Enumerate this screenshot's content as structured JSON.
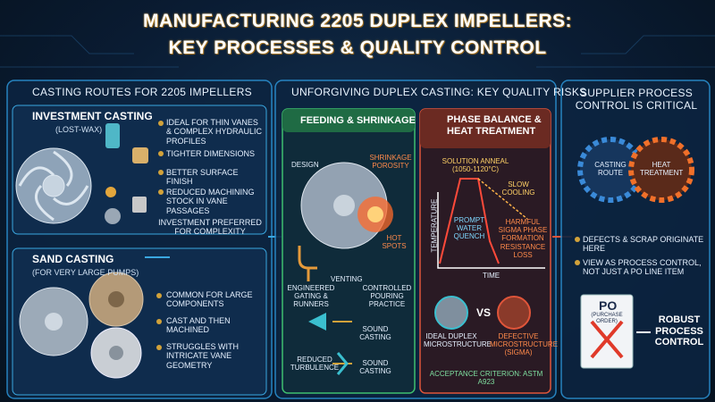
{
  "header": {
    "title_line_1": "MANUFACTURING 2205 DUPLEX IMPELLERS:",
    "title_line_2": "KEY PROCESSES & QUALITY CONTROL"
  },
  "casting_routes": {
    "heading": "CASTING ROUTES FOR 2205 IMPELLERS",
    "investment": {
      "title": "INVESTMENT CASTING",
      "subtitle": "(LOST-WAX)",
      "bullets": [
        "IDEAL FOR THIN VANES & COMPLEX HYDRAULIC PROFILES",
        "TIGHTER DIMENSIONS",
        "BETTER SURFACE FINISH",
        "REDUCED MACHINING STOCK IN VANE PASSAGES"
      ],
      "note": "INVESTMENT PREFERRED FOR COMPLEXITY"
    },
    "sand": {
      "title": "SAND CASTING",
      "subtitle": "(FOR VERY LARGE PUMPS)",
      "bullets": [
        "COMMON FOR LARGE COMPONENTS",
        "CAST AND THEN MACHINED",
        "STRUGGLES WITH INTRICATE VANE GEOMETRY"
      ]
    }
  },
  "quality_risks": {
    "heading": "UNFORGIVING DUPLEX CASTING: KEY QUALITY RISKS",
    "feeding": {
      "title": "FEEDING & SHRINKAGE",
      "design": "DESIGN",
      "shrinkage": "SHRINKAGE POROSITY",
      "hot_spots": "HOT SPOTS",
      "gating": "ENGINEERED GATING & RUNNERS",
      "venting": "VENTING",
      "pouring": "CONTROLLED POURING PRACTICE",
      "sound_1": "SOUND CASTING",
      "turbulence": "REDUCED TURBULENCE",
      "sound_2": "SOUND CASTING"
    },
    "phase": {
      "title": "PHASE BALANCE & HEAT TREATMENT",
      "anneal": "SOLUTION ANNEAL (1050-1120°C)",
      "slow": "SLOW COOLING",
      "quench": "PROMPT WATER QUENCH",
      "harm": "HARMFUL SIGMA PHASE FORMATION RESISTANCE LOSS",
      "y_axis": "TEMPERATURE",
      "x_axis": "TIME",
      "ideal": "IDEAL DUPLEX MICROSTRUCTURE",
      "vs": "VS",
      "defective": "DEFECTIVE MICROSTRUCTURE (SIGMA)",
      "acceptance": "ACCEPTANCE CRITERION: ASTM A923"
    }
  },
  "supplier": {
    "heading": "SUPPLIER PROCESS CONTROL IS CRITICAL",
    "gear_1": "CASTING ROUTE",
    "gear_2": "HEAT TREATMENT",
    "bullets": [
      "DEFECTS & SCRAP ORIGINATE HERE",
      "VIEW AS PROCESS CONTROL, NOT JUST A PO LINE ITEM"
    ],
    "po": "PO",
    "po_sub": "(PURCHASE ORDER)",
    "result": "ROBUST PROCESS CONTROL"
  }
}
